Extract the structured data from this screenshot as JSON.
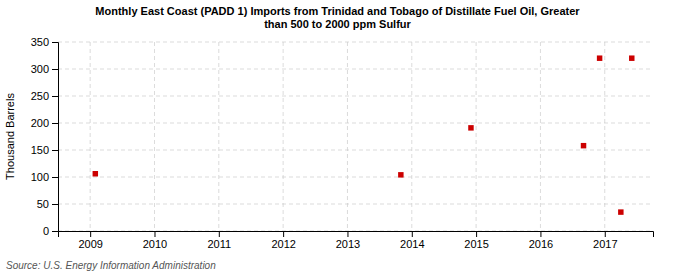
{
  "chart_data": {
    "type": "scatter",
    "title": "Monthly East Coast (PADD 1) Imports from Trinidad and Tobago of Distillate Fuel Oil, Greater\nthan 500 to 2000 ppm Sulfur",
    "ylabel": "Thousand Barrels",
    "annotations": [
      "Source: U.S. Energy Information Administration"
    ],
    "x": [
      2009.08,
      2013.83,
      2014.92,
      2016.67,
      2016.92,
      2017.25,
      2017.42
    ],
    "values": [
      106,
      104,
      191,
      158,
      320,
      35,
      320
    ],
    "color": "#cc0000",
    "marker": "square",
    "xlim": [
      2008.5,
      2017.75
    ],
    "ylim": [
      0,
      350
    ],
    "xticks": [
      2009,
      2010,
      2011,
      2012,
      2013,
      2014,
      2015,
      2016,
      2017
    ],
    "yticks": [
      0,
      50,
      100,
      150,
      200,
      250,
      300,
      350
    ],
    "grid": true
  }
}
